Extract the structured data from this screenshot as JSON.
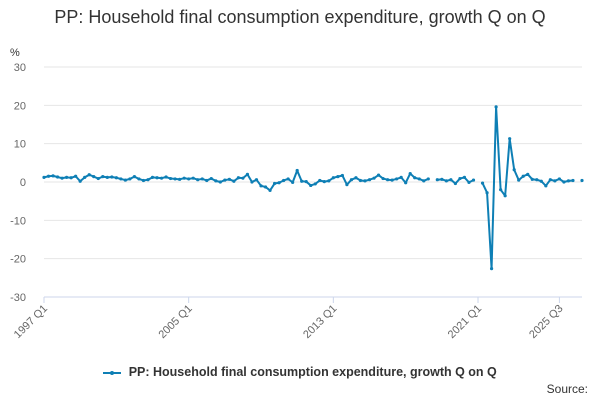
{
  "title": "PP: Household final consumption expenditure, growth Q on Q",
  "source_label": "Source:",
  "legend_label": "PP: Household final consumption expenditure, growth Q on Q",
  "colors": {
    "series": "#0e7fb5",
    "grid": "#e6e6e6",
    "axis": "#ccd6eb",
    "text": "#666666"
  },
  "chart_data": {
    "type": "line",
    "title": "PP: Household final consumption expenditure, growth Q on Q",
    "ylabel": "%",
    "xlabel": "",
    "ylim": [
      -30,
      30
    ],
    "yticks": [
      30,
      20,
      10,
      0,
      -10,
      -20,
      -30
    ],
    "x_start": "1997 Q1",
    "x_tick_labels": [
      {
        "label": "1997 Q1",
        "index": 0
      },
      {
        "label": "2005 Q1",
        "index": 32
      },
      {
        "label": "2013 Q1",
        "index": 64
      },
      {
        "label": "2021 Q1",
        "index": 96
      },
      {
        "label": "2025 Q3",
        "index": 114
      }
    ],
    "series": [
      {
        "name": "PP: Household final consumption expenditure, growth Q on Q",
        "values": [
          1.2,
          1.5,
          1.6,
          1.3,
          1.0,
          1.2,
          1.1,
          1.5,
          0.2,
          1.2,
          1.9,
          1.4,
          0.9,
          1.4,
          1.2,
          1.3,
          1.1,
          0.8,
          0.5,
          0.8,
          1.4,
          0.8,
          0.4,
          0.6,
          1.2,
          1.1,
          1.0,
          1.3,
          0.9,
          0.8,
          0.7,
          1.0,
          0.8,
          1.0,
          0.6,
          0.8,
          0.4,
          0.9,
          0.3,
          0.0,
          0.5,
          0.7,
          0.2,
          1.1,
          1.0,
          2.0,
          0.0,
          0.6,
          -1.0,
          -1.3,
          -2.2,
          -0.4,
          -0.2,
          0.4,
          0.8,
          -0.1,
          3.0,
          0.2,
          0.1,
          -0.9,
          -0.5,
          0.4,
          0.1,
          0.3,
          1.1,
          1.4,
          1.7,
          -0.7,
          0.6,
          1.1,
          0.4,
          0.3,
          0.6,
          1.0,
          1.8,
          0.9,
          0.6,
          0.5,
          0.8,
          1.2,
          -0.2,
          2.2,
          1.1,
          0.8,
          0.3,
          0.8,
          null,
          0.6,
          0.7,
          0.3,
          0.6,
          -0.4,
          0.9,
          1.2,
          -0.1,
          0.5,
          null,
          -0.3,
          -2.8,
          -22.6,
          19.6,
          -2.0,
          -3.6,
          11.3,
          3.2,
          0.5,
          1.5,
          2.0,
          0.7,
          0.6,
          0.2,
          -1.0,
          0.6,
          0.3,
          0.8,
          0.0,
          0.3,
          0.4,
          null,
          0.4
        ]
      }
    ]
  }
}
